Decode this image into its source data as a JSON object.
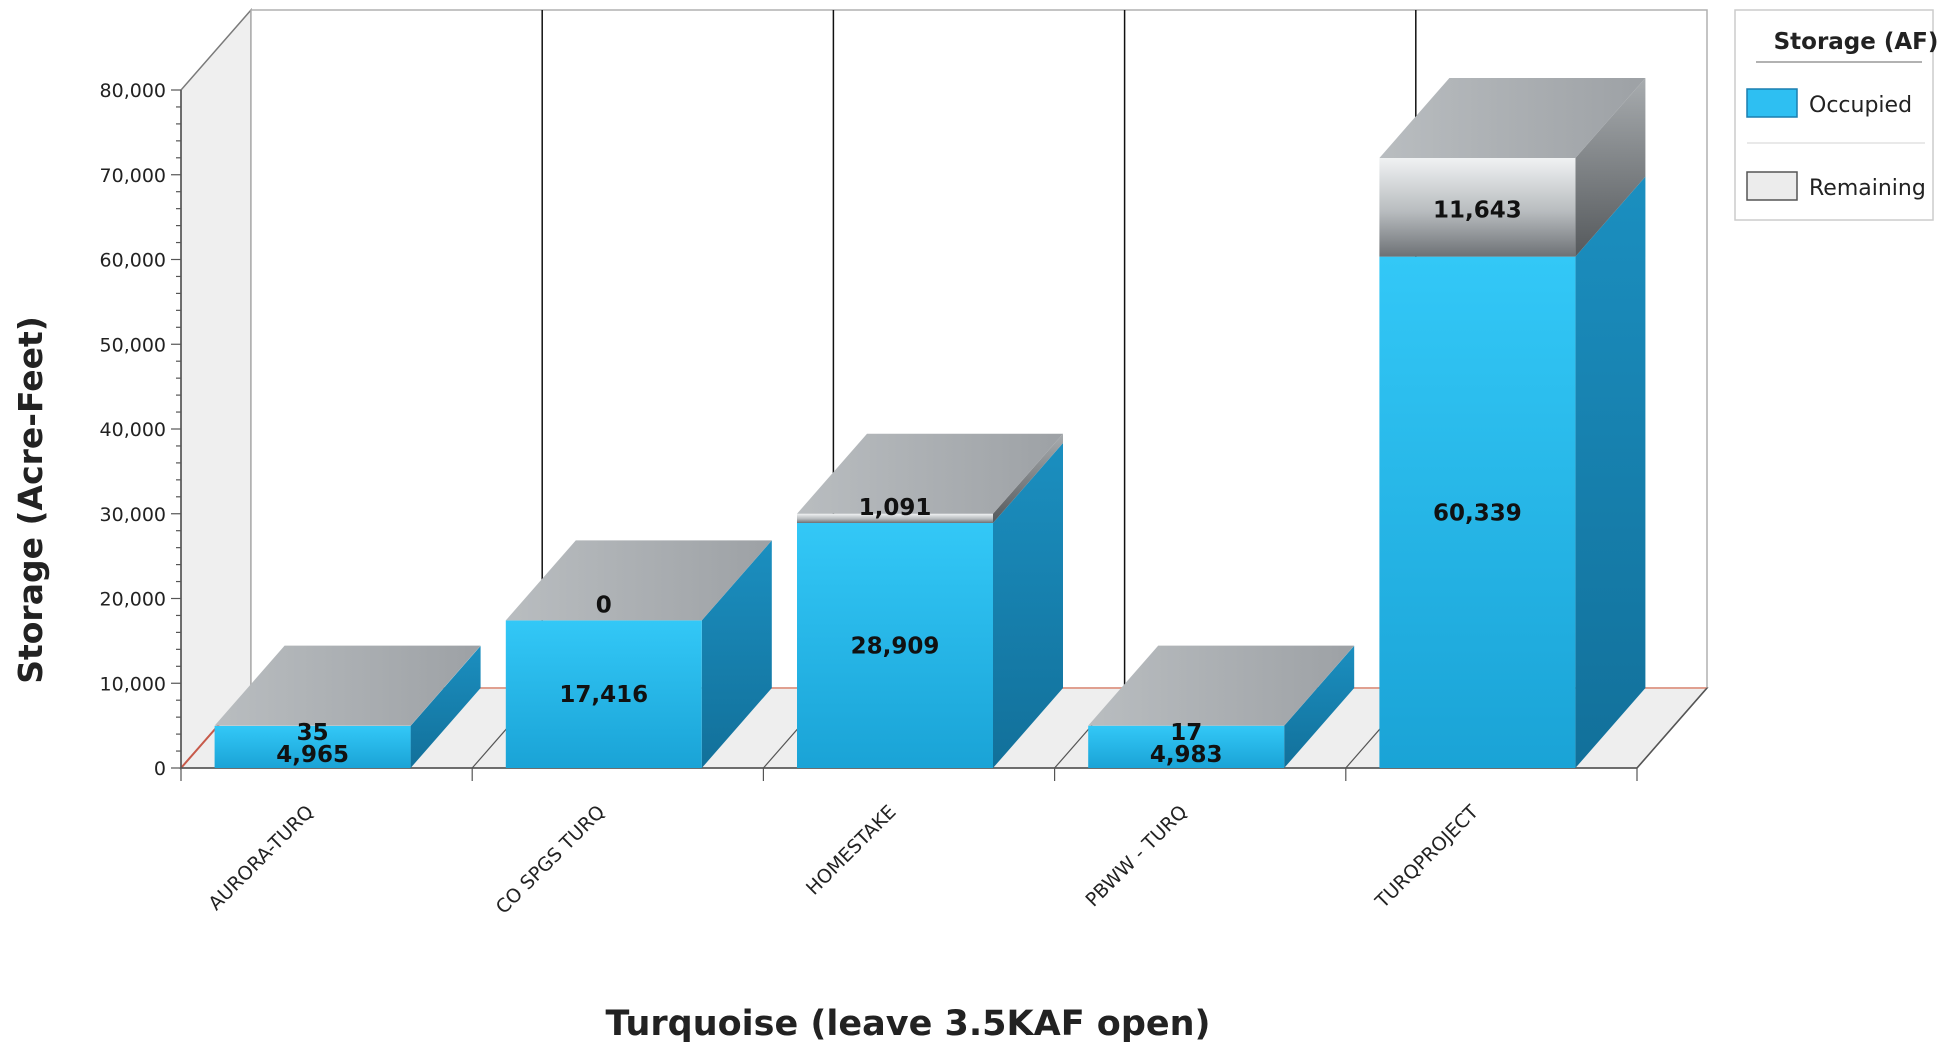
{
  "chart_data": {
    "type": "bar",
    "stacked": true,
    "three_d": true,
    "categories": [
      "AURORA-TURQ",
      "CO SPGS TURQ",
      "HOMESTAKE",
      "PBWW - TURQ",
      "TURQPROJECT"
    ],
    "series": [
      {
        "name": "Occupied",
        "values": [
          4965,
          17416,
          28909,
          4983,
          60339
        ],
        "color": "#2ebff2"
      },
      {
        "name": "Remaining",
        "values": [
          35,
          0,
          1091,
          17,
          11643
        ],
        "color": "#a7abae"
      }
    ],
    "data_labels": {
      "Occupied": [
        "4,965",
        "17,416",
        "28,909",
        "4,983",
        "60,339"
      ],
      "Remaining": [
        "35",
        "0",
        "1,091",
        "17",
        "11,643"
      ]
    },
    "title": "",
    "xlabel": "Turquoise (leave 3.5KAF open)",
    "ylabel": "Storage (Acre-Feet)",
    "ylim": [
      0,
      80000
    ],
    "yticks": [
      0,
      10000,
      20000,
      30000,
      40000,
      50000,
      60000,
      70000,
      80000
    ],
    "ytick_labels": [
      "0",
      "10,000",
      "20,000",
      "30,000",
      "40,000",
      "50,000",
      "60,000",
      "70,000",
      "80,000"
    ],
    "grid": false,
    "legend": {
      "title": "Storage (AF)",
      "position": "top-right"
    }
  }
}
